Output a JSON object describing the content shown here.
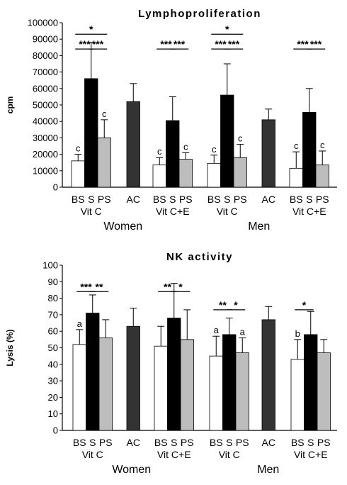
{
  "chart_data": [
    {
      "type": "bar",
      "title": "Lymphoproliferation",
      "ylabel": "cpm",
      "ylim": [
        0,
        100000
      ],
      "yticks": [
        "0",
        "10000",
        "20000",
        "30000",
        "40000",
        "50000",
        "60000",
        "70000",
        "80000",
        "90000",
        "100000"
      ],
      "groups": [
        {
          "sex": "Women",
          "sub": "Vit C",
          "bars": [
            {
              "label": "BS",
              "color": "white",
              "value": 16000,
              "err": 4000,
              "letter": "c"
            },
            {
              "label": "S",
              "color": "black",
              "value": 66000,
              "err": 22000,
              "letter": ""
            },
            {
              "label": "PS",
              "color": "lightgray",
              "value": 30000,
              "err": 11000,
              "letter": "c"
            }
          ]
        },
        {
          "sex": "",
          "sub": "",
          "bars": [
            {
              "label": "AC",
              "color": "darkgray",
              "value": 52000,
              "err": 11000,
              "letter": ""
            }
          ]
        },
        {
          "sex": "",
          "sub": "Vit C+E",
          "bars": [
            {
              "label": "BS",
              "color": "white",
              "value": 13500,
              "err": 4500,
              "letter": "c"
            },
            {
              "label": "S",
              "color": "black",
              "value": 40500,
              "err": 14500,
              "letter": ""
            },
            {
              "label": "PS",
              "color": "lightgray",
              "value": 17000,
              "err": 4000,
              "letter": "c"
            }
          ]
        },
        {
          "sex": "Men",
          "sub": "Vit C",
          "bars": [
            {
              "label": "BS",
              "color": "white",
              "value": 14500,
              "err": 5000,
              "letter": "c"
            },
            {
              "label": "S",
              "color": "black",
              "value": 56000,
              "err": 19000,
              "letter": ""
            },
            {
              "label": "PS",
              "color": "lightgray",
              "value": 18000,
              "err": 8000,
              "letter": "c"
            }
          ]
        },
        {
          "sex": "",
          "sub": "",
          "bars": [
            {
              "label": "AC",
              "color": "darkgray",
              "value": 41000,
              "err": 6500,
              "letter": ""
            }
          ]
        },
        {
          "sex": "",
          "sub": "Vit C+E",
          "bars": [
            {
              "label": "BS",
              "color": "white",
              "value": 11500,
              "err": 10000,
              "letter": "c"
            },
            {
              "label": "S",
              "color": "black",
              "value": 45500,
              "err": 14500,
              "letter": ""
            },
            {
              "label": "PS",
              "color": "lightgray",
              "value": 13500,
              "err": 8500,
              "letter": "c"
            }
          ]
        }
      ],
      "significance": [
        {
          "group": 0,
          "from": 0,
          "to": 2,
          "text": "*",
          "level": 3
        },
        {
          "group": 0,
          "from": 0,
          "to": 1,
          "text": "***",
          "level": 2
        },
        {
          "group": 0,
          "from": 1,
          "to": 2,
          "text": "***",
          "level": 2
        },
        {
          "group": 2,
          "from": 0,
          "to": 1,
          "text": "***",
          "level": 2
        },
        {
          "group": 2,
          "from": 1,
          "to": 2,
          "text": "***",
          "level": 2
        },
        {
          "group": 3,
          "from": 0,
          "to": 2,
          "text": "*",
          "level": 3
        },
        {
          "group": 3,
          "from": 0,
          "to": 1,
          "text": "***",
          "level": 2
        },
        {
          "group": 3,
          "from": 1,
          "to": 2,
          "text": "***",
          "level": 2
        },
        {
          "group": 5,
          "from": 0,
          "to": 1,
          "text": "***",
          "level": 2
        },
        {
          "group": 5,
          "from": 1,
          "to": 2,
          "text": "***",
          "level": 2
        }
      ],
      "sig_y": {
        "2": 84000,
        "3": 93000
      }
    },
    {
      "type": "bar",
      "title": "NK activity",
      "ylabel": "Lysis (%)",
      "ylim": [
        0,
        100
      ],
      "yticks": [
        "0",
        "10",
        "20",
        "30",
        "40",
        "50",
        "60",
        "70",
        "80",
        "90",
        "100"
      ],
      "groups": [
        {
          "sex": "Women",
          "sub": "Vit C",
          "bars": [
            {
              "label": "BS",
              "color": "white",
              "value": 52,
              "err": 9,
              "letter": "a"
            },
            {
              "label": "S",
              "color": "black",
              "value": 71,
              "err": 11,
              "letter": ""
            },
            {
              "label": "PS",
              "color": "lightgray",
              "value": 56,
              "err": 11,
              "letter": ""
            }
          ]
        },
        {
          "sex": "",
          "sub": "",
          "bars": [
            {
              "label": "AC",
              "color": "darkgray",
              "value": 63,
              "err": 11,
              "letter": ""
            }
          ]
        },
        {
          "sex": "",
          "sub": "Vit C+E",
          "bars": [
            {
              "label": "BS",
              "color": "white",
              "value": 51,
              "err": 12,
              "letter": ""
            },
            {
              "label": "S",
              "color": "black",
              "value": 68,
              "err": 21,
              "letter": ""
            },
            {
              "label": "PS",
              "color": "lightgray",
              "value": 55,
              "err": 18,
              "letter": ""
            }
          ]
        },
        {
          "sex": "Men",
          "sub": "Vit C",
          "bars": [
            {
              "label": "BS",
              "color": "white",
              "value": 45,
              "err": 12,
              "letter": "a"
            },
            {
              "label": "S",
              "color": "black",
              "value": 58,
              "err": 10,
              "letter": ""
            },
            {
              "label": "PS",
              "color": "lightgray",
              "value": 47,
              "err": 9,
              "letter": "a"
            }
          ]
        },
        {
          "sex": "",
          "sub": "",
          "bars": [
            {
              "label": "AC",
              "color": "darkgray",
              "value": 67,
              "err": 8,
              "letter": ""
            }
          ]
        },
        {
          "sex": "",
          "sub": "Vit C+E",
          "bars": [
            {
              "label": "BS",
              "color": "white",
              "value": 43,
              "err": 12,
              "letter": "b"
            },
            {
              "label": "S",
              "color": "black",
              "value": 58,
              "err": 14,
              "letter": ""
            },
            {
              "label": "PS",
              "color": "lightgray",
              "value": 47,
              "err": 8,
              "letter": ""
            }
          ]
        }
      ],
      "significance": [
        {
          "group": 0,
          "from": 0,
          "to": 1,
          "text": "***",
          "level": 2
        },
        {
          "group": 0,
          "from": 1,
          "to": 2,
          "text": "**",
          "level": 2
        },
        {
          "group": 2,
          "from": 0,
          "to": 1,
          "text": "**",
          "level": 2
        },
        {
          "group": 2,
          "from": 1,
          "to": 2,
          "text": "*",
          "level": 2
        },
        {
          "group": 3,
          "from": 0,
          "to": 1,
          "text": "**",
          "level": 1
        },
        {
          "group": 3,
          "from": 1,
          "to": 2,
          "text": "*",
          "level": 1
        },
        {
          "group": 5,
          "from": 0,
          "to": 1,
          "text": "*",
          "level": 1
        }
      ],
      "sig_y": {
        "1": 73,
        "2": 84
      }
    }
  ],
  "colors": {
    "white": "#ffffff",
    "black": "#000000",
    "lightgray": "#bdbdbd",
    "darkgray": "#333333"
  }
}
